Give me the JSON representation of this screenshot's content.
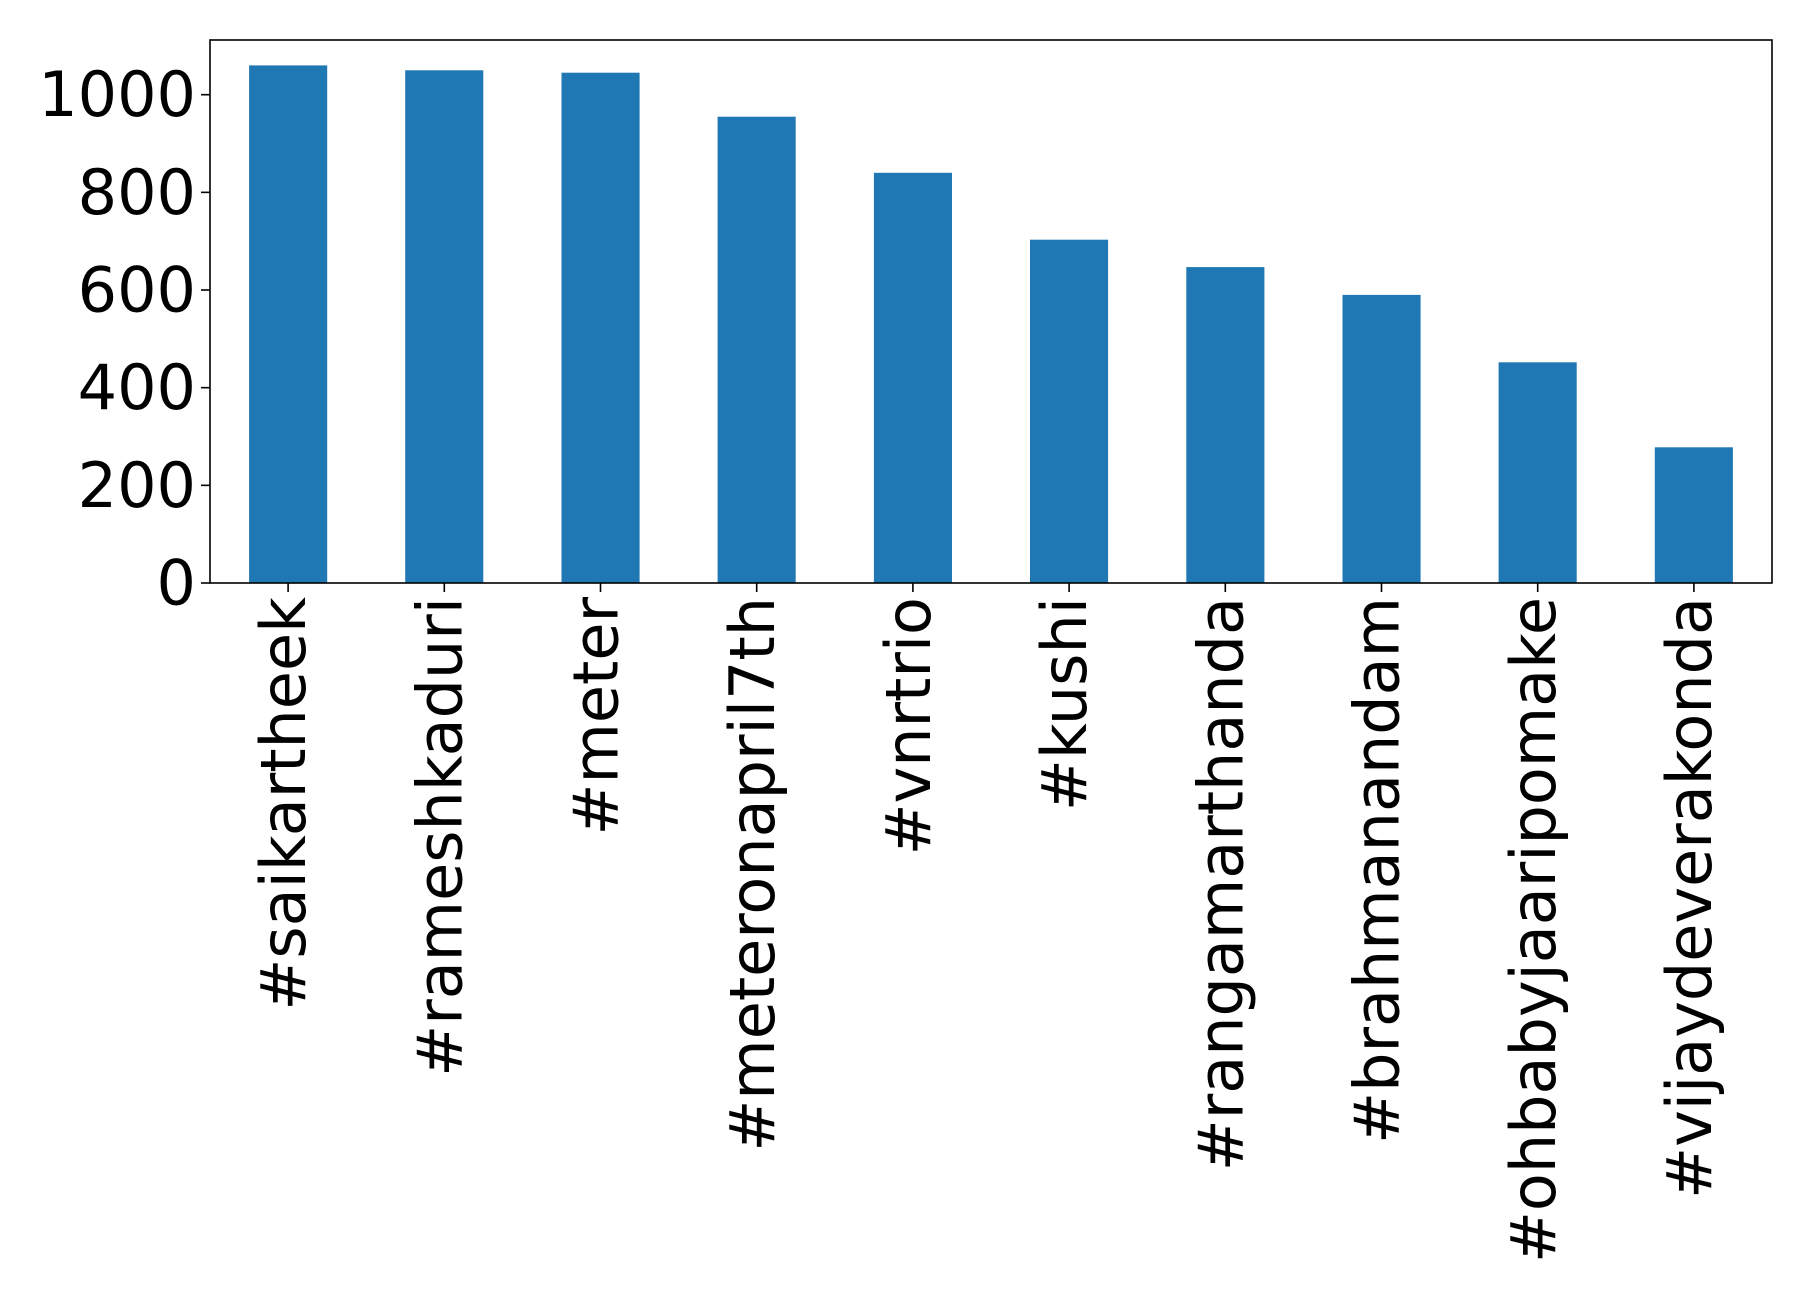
{
  "chart_data": {
    "type": "bar",
    "title": "",
    "xlabel": "",
    "ylabel": "",
    "categories": [
      "#saikartheek",
      "#rameshkaduri",
      "#meter",
      "#meteronapril7th",
      "#vnrtrio",
      "#kushi",
      "#rangamarthanda",
      "#brahmanandam",
      "#ohbabyjaaripomake",
      "#vijaydeverakonda"
    ],
    "values": [
      1060,
      1050,
      1045,
      955,
      840,
      703,
      647,
      590,
      452,
      278
    ],
    "ylim": [
      0,
      1112
    ],
    "yticks": [
      0,
      200,
      400,
      600,
      800,
      1000
    ],
    "grid": false,
    "legend": "none",
    "bar_color": "#1f77b4"
  }
}
